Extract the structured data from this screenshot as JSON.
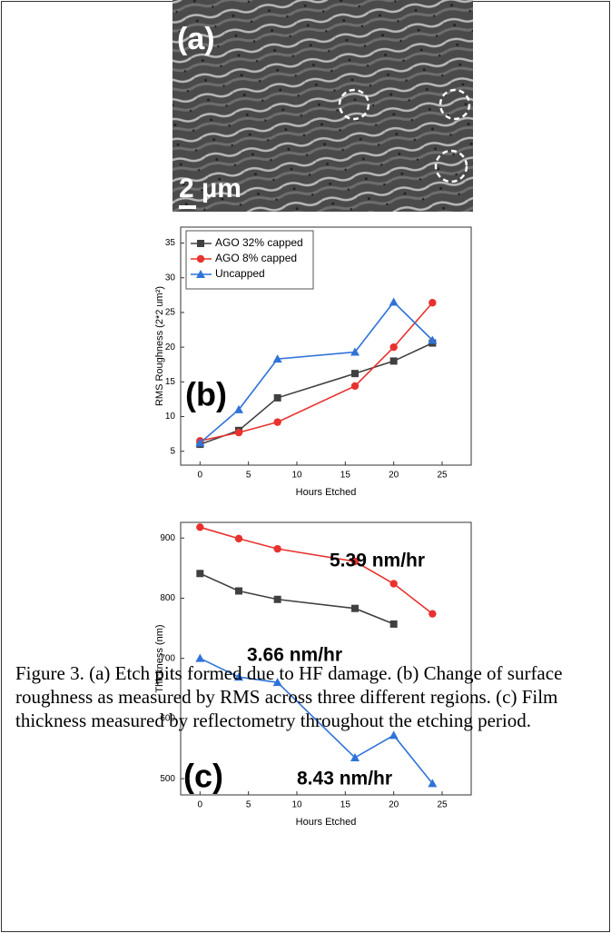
{
  "image": {
    "label": "(a)",
    "scale_bar": "2 µm"
  },
  "chart_data": [
    {
      "type": "line",
      "xlabel": "Hours Etched",
      "ylabel": "RMS Roughness (2*2 um²)",
      "annotations": [
        "(b)"
      ],
      "xlim": [
        -2,
        28
      ],
      "xticks": [
        0,
        5,
        10,
        15,
        20,
        25
      ],
      "ylim": [
        3,
        37.3
      ],
      "yticks": [
        5,
        10,
        15,
        20,
        25,
        30,
        35
      ],
      "legend": "upper left",
      "series": [
        {
          "name": "AGO 32% capped",
          "color": "#404040",
          "marker": "square",
          "x": [
            0,
            4,
            8,
            16,
            20,
            24
          ],
          "values": [
            6,
            8,
            12.7,
            16.2,
            18,
            20.6
          ]
        },
        {
          "name": "AGO 8% capped",
          "color": "#e8322f",
          "marker": "circle",
          "x": [
            0,
            4,
            8,
            16,
            20,
            24
          ],
          "values": [
            6.5,
            7.7,
            9.2,
            14.4,
            20,
            26.4
          ]
        },
        {
          "name": "Uncapped",
          "color": "#2f73d8",
          "marker": "triangle",
          "x": [
            0,
            4,
            8,
            16,
            20,
            24
          ],
          "values": [
            6.2,
            11,
            18.3,
            19.3,
            26.5,
            21
          ]
        }
      ]
    },
    {
      "type": "line",
      "xlabel": "Hours Etched",
      "ylabel": "Thickness (nm)",
      "annotations": [
        "(c)",
        "5.39 nm/hr",
        "3.66 nm/hr",
        "8.43 nm/hr"
      ],
      "xlim": [
        -2,
        28
      ],
      "xticks": [
        0,
        5,
        10,
        15,
        20,
        25
      ],
      "ylim": [
        473,
        926
      ],
      "yticks": [
        500,
        600,
        700,
        800,
        900
      ],
      "series": [
        {
          "color": "#e8322f",
          "marker": "circle",
          "x": [
            0,
            4,
            8,
            16,
            20,
            24
          ],
          "values": [
            918,
            899,
            882,
            861,
            824,
            774
          ]
        },
        {
          "color": "#404040",
          "marker": "square",
          "x": [
            0,
            4,
            8,
            16,
            20
          ],
          "values": [
            841,
            812,
            798,
            783,
            757
          ]
        },
        {
          "color": "#2f73d8",
          "marker": "triangle",
          "x": [
            0,
            4,
            8,
            16,
            20,
            24
          ],
          "values": [
            700,
            669,
            660,
            535,
            572,
            492
          ]
        }
      ]
    }
  ],
  "caption": "Figure 3. (a) Etch pits formed due to HF damage. (b) Change of surface roughness as measured by RMS across three different regions. (c) Film thickness measured by reflectometry throughout the etching period."
}
